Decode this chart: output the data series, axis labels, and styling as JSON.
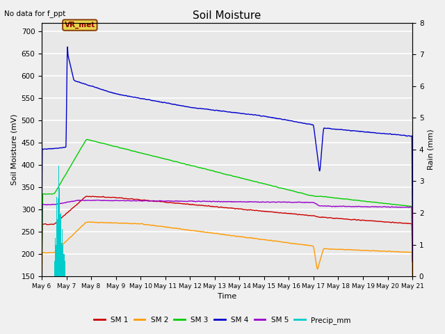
{
  "title": "Soil Moisture",
  "top_left_text": "No data for f_ppt",
  "xlabel": "Time",
  "ylabel_left": "Soil Moisture (mV)",
  "ylabel_right": "Rain (mm)",
  "ylim_left": [
    150,
    720
  ],
  "ylim_right": [
    0.0,
    8.0
  ],
  "yticks_left": [
    150,
    200,
    250,
    300,
    350,
    400,
    450,
    500,
    550,
    600,
    650,
    700
  ],
  "yticks_right": [
    0.0,
    1.0,
    2.0,
    3.0,
    4.0,
    5.0,
    6.0,
    7.0,
    8.0
  ],
  "num_days": 15,
  "num_points": 1440,
  "background_color": "#e8e8e8",
  "fig_background": "#f0f0f0",
  "grid_color": "#ffffff",
  "sm1_color": "#cc0000",
  "sm2_color": "#ff9900",
  "sm3_color": "#00cc00",
  "sm4_color": "#0000cc",
  "sm5_color": "#9900cc",
  "precip_color": "#00cccc",
  "annotation_text": "VR_met",
  "annotation_bbox_fc": "#e8d44d",
  "annotation_bbox_ec": "#8b4513",
  "tick_labels": [
    "May 6",
    "May 7",
    "May 8",
    "May 9",
    "May 10",
    "May 11",
    "May 12",
    "May 13",
    "May 14",
    "May 15",
    "May 16",
    "May 17",
    "May 18",
    "May 19",
    "May 20",
    "May 21"
  ]
}
